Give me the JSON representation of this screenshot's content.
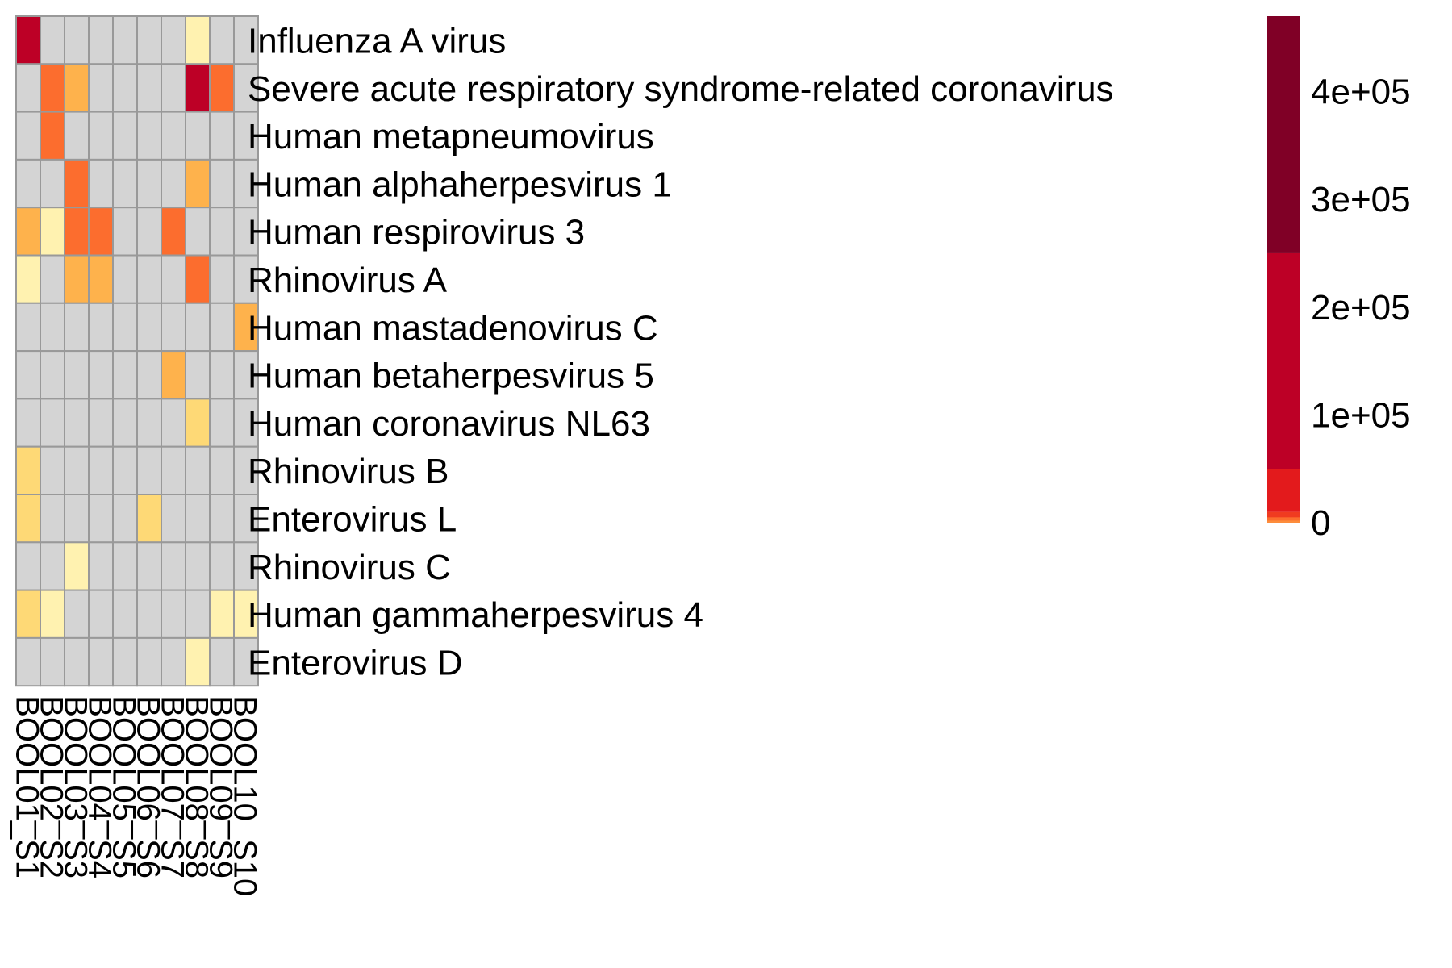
{
  "chart_data": {
    "type": "heatmap",
    "title": "",
    "xlabel": "",
    "ylabel": "",
    "rows": [
      "Influenza A virus",
      "Severe acute respiratory syndrome-related coronavirus",
      "Human metapneumovirus",
      "Human alphaherpesvirus 1",
      "Human respirovirus 3",
      "Rhinovirus A",
      "Human mastadenovirus C",
      "Human betaherpesvirus 5",
      "Human coronavirus NL63",
      "Rhinovirus B",
      "Enterovirus L",
      "Rhinovirus C",
      "Human gammaherpesvirus 4",
      "Enterovirus D"
    ],
    "columns": [
      "BOOL01_S1",
      "BOOL02_S2",
      "BOOL03_S3",
      "BOOL04_S4",
      "BOOL05_S5",
      "BOOL06_S6",
      "BOOL07_S7",
      "BOOL08_S8",
      "BOOL09_S9",
      "BOOL10_S10"
    ],
    "values": [
      [
        200000,
        null,
        null,
        null,
        null,
        null,
        null,
        10,
        null,
        null
      ],
      [
        null,
        3000,
        800,
        null,
        null,
        null,
        null,
        60000,
        3000,
        null
      ],
      [
        null,
        3000,
        null,
        null,
        null,
        null,
        null,
        null,
        null,
        null
      ],
      [
        null,
        null,
        3000,
        null,
        null,
        null,
        null,
        800,
        null,
        null
      ],
      [
        800,
        10,
        3000,
        3000,
        null,
        null,
        3000,
        null,
        null,
        null
      ],
      [
        10,
        null,
        800,
        800,
        null,
        null,
        null,
        3000,
        null,
        null
      ],
      [
        null,
        null,
        null,
        null,
        null,
        null,
        null,
        null,
        null,
        800
      ],
      [
        null,
        null,
        null,
        null,
        null,
        null,
        800,
        null,
        null,
        null
      ],
      [
        null,
        null,
        null,
        null,
        null,
        null,
        null,
        100,
        null,
        null
      ],
      [
        100,
        null,
        null,
        null,
        null,
        null,
        null,
        null,
        null,
        null
      ],
      [
        100,
        null,
        null,
        null,
        null,
        100,
        null,
        null,
        null,
        null
      ],
      [
        null,
        null,
        10,
        null,
        null,
        null,
        null,
        null,
        null,
        null
      ],
      [
        100,
        10,
        null,
        null,
        null,
        null,
        null,
        null,
        10,
        10
      ],
      [
        null,
        null,
        null,
        null,
        null,
        null,
        null,
        10,
        null,
        null
      ]
    ],
    "missing_color": "#d4d4d4",
    "cell_border_color": "#999999",
    "color_bins": [
      {
        "max": 50,
        "color": "#fff2b0"
      },
      {
        "max": 500,
        "color": "#fed976"
      },
      {
        "max": 2000,
        "color": "#feb24c"
      },
      {
        "max": 5000,
        "color": "#fc6d2e"
      },
      {
        "max": 10000,
        "color": "#f03b20"
      },
      {
        "max": 50000,
        "color": "#e31a1c"
      },
      {
        "max": 250000,
        "color": "#bd0026"
      },
      {
        "max": 500000,
        "color": "#800026"
      }
    ],
    "legend": {
      "position": "right",
      "range": [
        0,
        470000
      ],
      "ticks": [
        {
          "value": 0,
          "label": "0"
        },
        {
          "value": 100000,
          "label": "1e+05"
        },
        {
          "value": 200000,
          "label": "2e+05"
        },
        {
          "value": 300000,
          "label": "3e+05"
        },
        {
          "value": 400000,
          "label": "4e+05"
        }
      ],
      "segments": [
        {
          "from": 0,
          "to": 2000,
          "color": "#fd8d3c"
        },
        {
          "from": 2000,
          "to": 5000,
          "color": "#fc6d2e"
        },
        {
          "from": 5000,
          "to": 10000,
          "color": "#f03b20"
        },
        {
          "from": 10000,
          "to": 50000,
          "color": "#e31a1c"
        },
        {
          "from": 50000,
          "to": 250000,
          "color": "#bd0026"
        },
        {
          "from": 250000,
          "to": 470000,
          "color": "#800026"
        }
      ]
    }
  }
}
